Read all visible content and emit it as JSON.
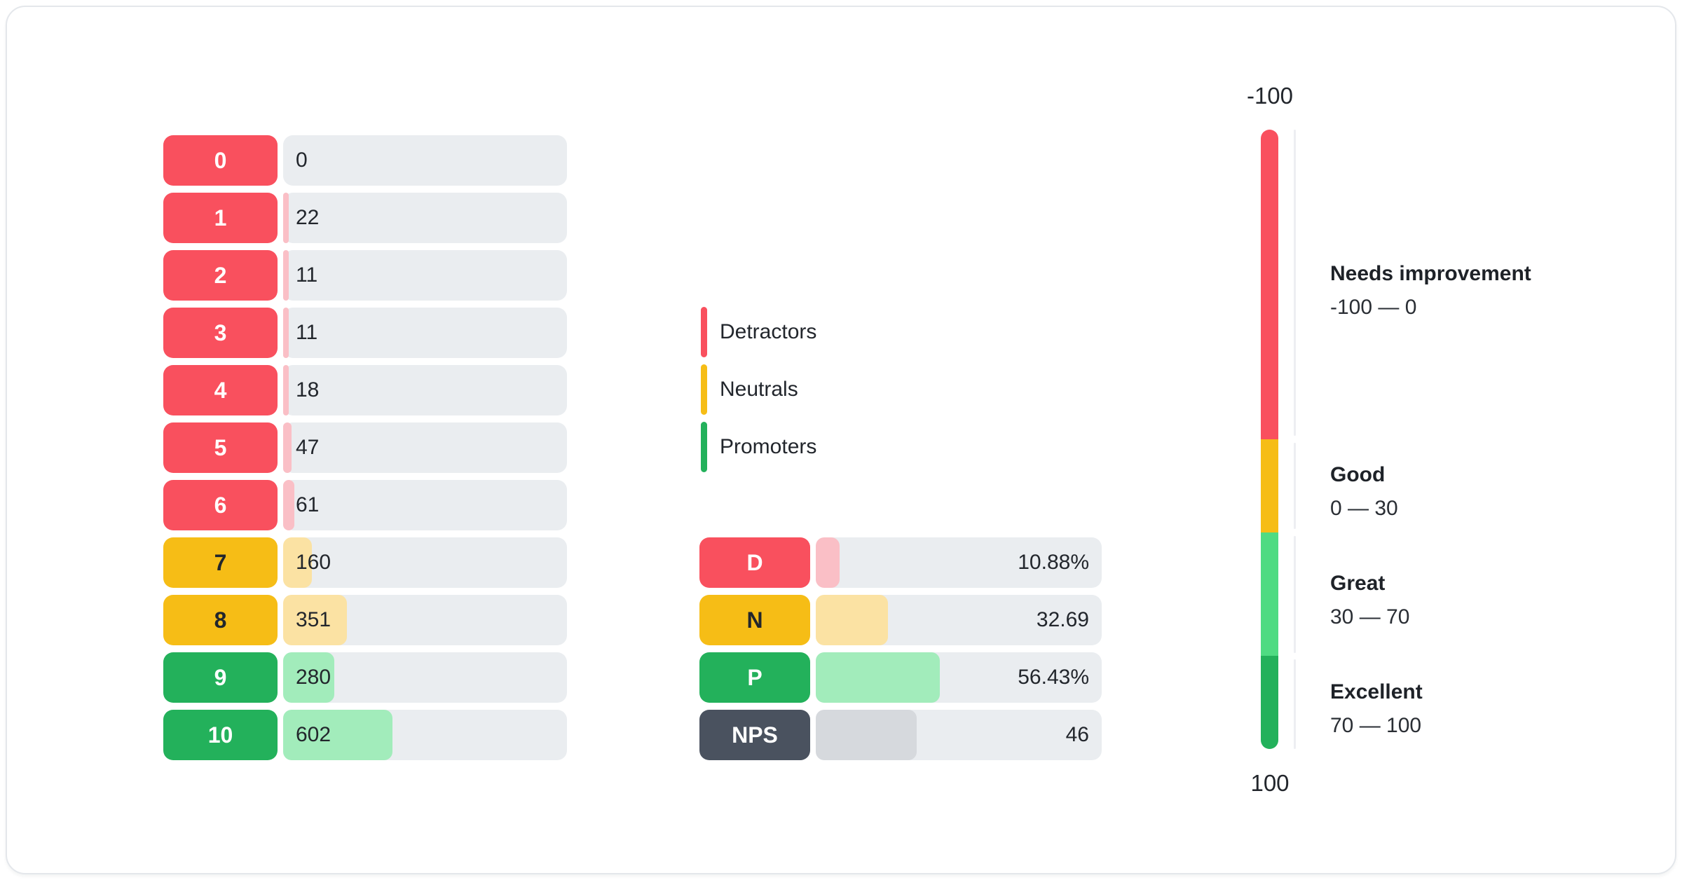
{
  "colors": {
    "detractor": "#F9505E",
    "detractor_fill": "#FABFC6",
    "neutral": "#F6BD16",
    "neutral_fill": "#FBE2A3",
    "promoter": "#23B15B",
    "promoter_light": "#4FDB82",
    "promoter_fill": "#A2ECBB",
    "nps": "#4A525F",
    "nps_fill": "#D6D9DD",
    "track": "#EAEDF0",
    "text_dark": "#22262C",
    "text_on_color": "#FFFFFF"
  },
  "legend": {
    "items": [
      {
        "label": "Detractors",
        "color_key": "detractor"
      },
      {
        "label": "Neutrals",
        "color_key": "neutral"
      },
      {
        "label": "Promoters",
        "color_key": "promoter"
      }
    ]
  },
  "chart_data": [
    {
      "id": "score-distribution",
      "type": "bar",
      "orientation": "horizontal",
      "categories": [
        "0",
        "1",
        "2",
        "3",
        "4",
        "5",
        "6",
        "7",
        "8",
        "9",
        "10"
      ],
      "values": [
        0,
        22,
        11,
        11,
        18,
        47,
        61,
        160,
        351,
        280,
        602
      ],
      "groups": [
        "detractor",
        "detractor",
        "detractor",
        "detractor",
        "detractor",
        "detractor",
        "detractor",
        "neutral",
        "neutral",
        "promoter",
        "promoter"
      ],
      "xlim": [
        0,
        1563
      ],
      "grid": false
    },
    {
      "id": "nps-summary",
      "type": "bar",
      "orientation": "horizontal",
      "categories": [
        "D",
        "N",
        "P",
        "NPS"
      ],
      "values": [
        10.88,
        32.69,
        56.43,
        46
      ],
      "value_labels": [
        "10.88%",
        "32.69",
        "56.43%",
        "46"
      ],
      "groups": [
        "detractor",
        "neutral",
        "promoter",
        "nps"
      ],
      "xlim": [
        0,
        130
      ],
      "grid": false
    },
    {
      "id": "nps-scale",
      "type": "gauge",
      "orientation": "vertical",
      "range": [
        -100,
        100
      ],
      "axis_top_label": "-100",
      "axis_bottom_label": "100",
      "segments": [
        {
          "label": "Needs improvement",
          "range_label": "-100 — 0",
          "from": -100,
          "to": 0,
          "color_key": "detractor"
        },
        {
          "label": "Good",
          "range_label": "0 — 30",
          "from": 0,
          "to": 30,
          "color_key": "neutral"
        },
        {
          "label": "Great",
          "range_label": "30 — 70",
          "from": 30,
          "to": 70,
          "color_key": "promoter_light"
        },
        {
          "label": "Excellent",
          "range_label": "70 — 100",
          "from": 70,
          "to": 100,
          "color_key": "promoter"
        }
      ]
    }
  ]
}
